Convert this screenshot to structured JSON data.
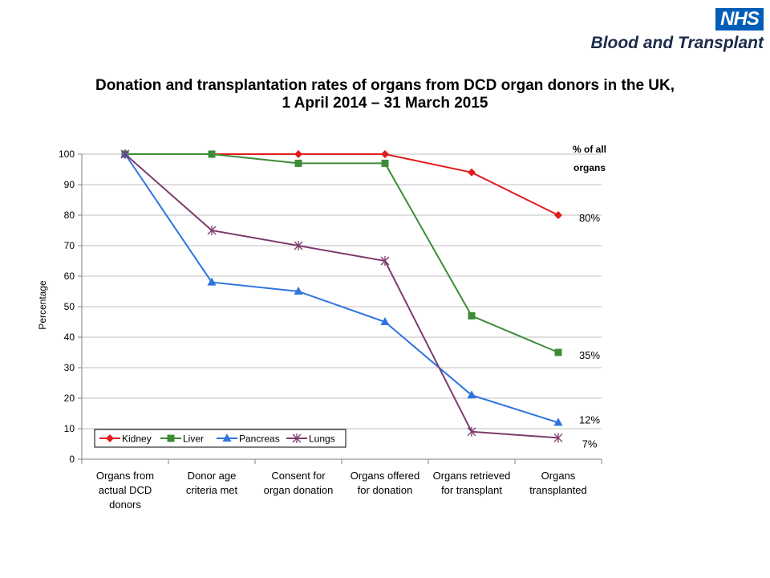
{
  "branding": {
    "badge": "NHS",
    "organisation": "Blood and Transplant",
    "badge_color": "#005eb8"
  },
  "titles": {
    "line1": "Donation and transplantation rates of organs from DCD organ donors in the UK,",
    "line2": "1 April 2014 –  31 March 2015"
  },
  "chart_data": {
    "type": "line",
    "title": "Donation and transplantation rates of organs from DCD organ donors in the UK, 1 April 2014 –  31 March 2015",
    "xlabel": "",
    "ylabel": "Percentage",
    "ylim": [
      0,
      100
    ],
    "yticks": [
      "0",
      "10",
      "20",
      "30",
      "40",
      "50",
      "60",
      "70",
      "80",
      "90",
      "100"
    ],
    "categories": [
      "Organs from actual DCD donors",
      "Donor age criteria met",
      "Consent for organ donation",
      "Organs offered for donation",
      "Organs retrieved for transplant",
      "Organs transplanted"
    ],
    "category_lines": [
      [
        "Organs from",
        "actual DCD",
        "donors"
      ],
      [
        "Donor age",
        "criteria met"
      ],
      [
        "Consent for",
        "organ donation"
      ],
      [
        "Organs offered",
        "for donation"
      ],
      [
        "Organs retrieved",
        "for transplant"
      ],
      [
        "Organs",
        "transplanted"
      ]
    ],
    "series": [
      {
        "name": "Kidney",
        "values": [
          100,
          100,
          100,
          100,
          94,
          80
        ],
        "color": "#e31a1c",
        "marker": "diamond"
      },
      {
        "name": "Liver",
        "values": [
          100,
          100,
          97,
          97,
          47,
          35
        ],
        "color": "#3d8b37",
        "marker": "square"
      },
      {
        "name": "Pancreas",
        "values": [
          100,
          58,
          55,
          45,
          21,
          12
        ],
        "color": "#2f74e0",
        "marker": "triangle"
      },
      {
        "name": "Lungs",
        "values": [
          100,
          75,
          70,
          65,
          9,
          7
        ],
        "color": "#7d3c6e",
        "marker": "star"
      }
    ],
    "end_labels": {
      "header": [
        "% of all",
        "organs"
      ],
      "values": [
        "80%",
        "35%",
        "12%",
        "7%"
      ]
    },
    "grid": true,
    "legend_position": "bottom-left"
  }
}
